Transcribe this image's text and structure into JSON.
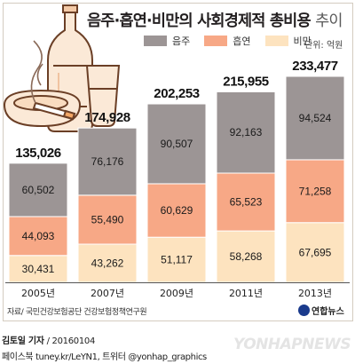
{
  "header": {
    "title_main": "음주·흡연·비만의 사회경제적 총비용",
    "title_suffix": "추이",
    "unit": "단위: 억원"
  },
  "colors": {
    "음주": "#9c9595",
    "흡연": "#f7a886",
    "비만": "#fde3bf",
    "total_text": "#111111"
  },
  "icons": [
    "bottle-icon",
    "glass-icon",
    "ashtray-icon",
    "cigarette-icon"
  ],
  "chart_data": {
    "type": "bar",
    "stacked": true,
    "categories": [
      "2005년",
      "2007년",
      "2009년",
      "2011년",
      "2013년"
    ],
    "series": [
      {
        "name": "비만",
        "values": [
          30431,
          43262,
          51117,
          58268,
          67695
        ]
      },
      {
        "name": "흡연",
        "values": [
          44093,
          55490,
          60629,
          65523,
          71258
        ]
      },
      {
        "name": "음주",
        "values": [
          60502,
          76176,
          90507,
          92163,
          94524
        ]
      }
    ],
    "totals": [
      "135,026",
      "174,928",
      "202,253",
      "215,955",
      "233,477"
    ],
    "segment_labels": [
      [
        "30,431",
        "43,262",
        "51,117",
        "58,268",
        "67,695"
      ],
      [
        "44,093",
        "55,490",
        "60,629",
        "65,523",
        "71,258"
      ],
      [
        "60,502",
        "76,176",
        "90,507",
        "92,163",
        "94,524"
      ]
    ],
    "legend": [
      "음주",
      "흡연",
      "비만"
    ],
    "legend_position": "top",
    "ylim": [
      0,
      233477
    ],
    "grid": false
  },
  "footer": {
    "source": "자료/ 국민건강보험공단 건강보험정책연구원",
    "reporter": "김토일 기자",
    "date": "/ 20160104",
    "social": "페이스북 tuney.kr/LeYN1, 트위터 @yonhap_graphics",
    "brand": "연합뉴스",
    "watermark": "YONHAPNEWS"
  }
}
